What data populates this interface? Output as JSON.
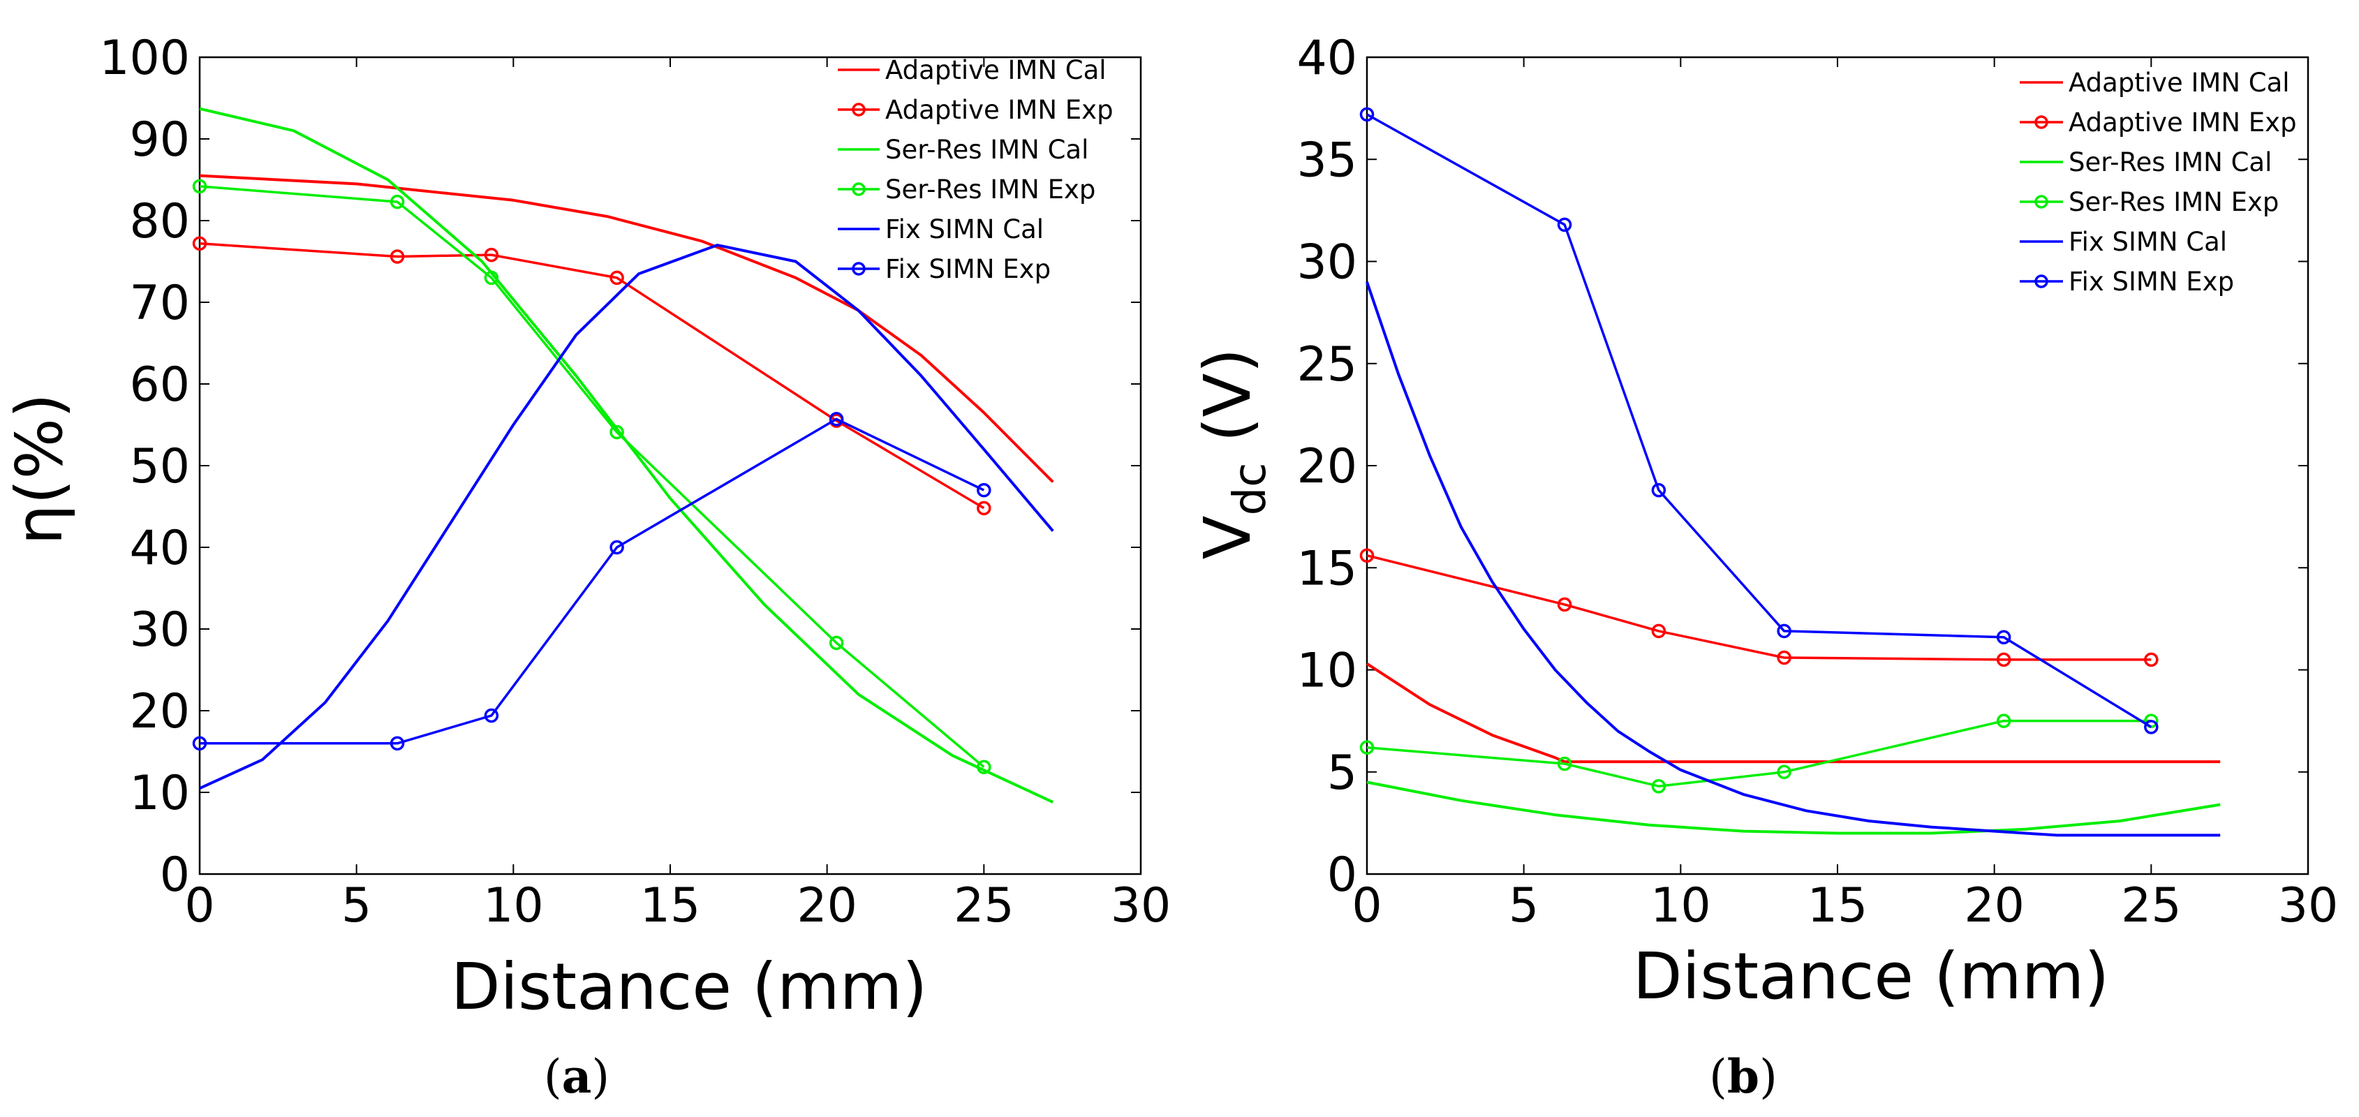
{
  "chart_data": [
    {
      "type": "line",
      "panel_label": {
        "open": "(",
        "letter": "a",
        "close": ")"
      },
      "xlabel": "Distance (mm)",
      "ylabel": "η(%)",
      "xlim": [
        0,
        30
      ],
      "ylim": [
        0,
        100
      ],
      "xticks": [
        "0",
        "5",
        "10",
        "15",
        "20",
        "25",
        "30"
      ],
      "yticks": [
        "0",
        "10",
        "20",
        "30",
        "40",
        "50",
        "60",
        "70",
        "80",
        "90",
        "100"
      ],
      "legend_position": "top-right",
      "series": [
        {
          "name": "Adaptive IMN Cal",
          "color": "#ff0000",
          "markers": false,
          "x": [
            0,
            5,
            10,
            13,
            16,
            19,
            21,
            23,
            25,
            27.2
          ],
          "y": [
            85.5,
            84.5,
            82.5,
            80.5,
            77.5,
            73,
            69,
            63.5,
            56.5,
            48
          ]
        },
        {
          "name": "Adaptive IMN Exp",
          "color": "#ff0000",
          "markers": true,
          "x": [
            0,
            6.3,
            9.3,
            13.3,
            20.3,
            25
          ],
          "y": [
            77.2,
            75.6,
            75.8,
            73,
            55.5,
            44.8
          ]
        },
        {
          "name": "Ser-Res IMN Cal",
          "color": "#00ee00",
          "markers": false,
          "x": [
            0,
            3,
            6,
            9,
            12,
            15,
            18,
            21,
            24,
            27.2
          ],
          "y": [
            93.7,
            91,
            85,
            75,
            61,
            46,
            33,
            22,
            14.5,
            8.8
          ]
        },
        {
          "name": "Ser-Res IMN Exp",
          "color": "#00ee00",
          "markers": true,
          "x": [
            0,
            6.3,
            9.3,
            13.3,
            20.3,
            25
          ],
          "y": [
            84.2,
            82.3,
            73,
            54.1,
            28.3,
            13.1
          ]
        },
        {
          "name": "Fix SIMN Cal",
          "color": "#0000ff",
          "markers": false,
          "x": [
            0,
            2,
            4,
            6,
            8,
            10,
            12,
            14,
            16.5,
            19,
            21,
            23,
            25,
            27.2
          ],
          "y": [
            10.5,
            14,
            21,
            31,
            43,
            55,
            66,
            73.5,
            77,
            75,
            69,
            61,
            52,
            42
          ]
        },
        {
          "name": "Fix SIMN Exp",
          "color": "#0000ff",
          "markers": true,
          "x": [
            0,
            6.3,
            9.3,
            13.3,
            20.3,
            25
          ],
          "y": [
            16,
            16,
            19.4,
            40,
            55.7,
            47
          ]
        }
      ]
    },
    {
      "type": "line",
      "panel_label": {
        "open": "(",
        "letter": "b",
        "close": ")"
      },
      "xlabel": "Distance (mm)",
      "ylabel_main": "V",
      "ylabel_sub": "dc",
      "ylabel_units": " (V)",
      "xlim": [
        0,
        30
      ],
      "ylim": [
        0,
        40
      ],
      "xticks": [
        "0",
        "5",
        "10",
        "15",
        "20",
        "25",
        "30"
      ],
      "yticks": [
        "0",
        "5",
        "10",
        "15",
        "20",
        "25",
        "30",
        "35",
        "40"
      ],
      "legend_position": "top-right",
      "series": [
        {
          "name": "Adaptive IMN Cal",
          "color": "#ff0000",
          "markers": false,
          "x": [
            0,
            2,
            4,
            6,
            6.3,
            10,
            15,
            20,
            25,
            27.2
          ],
          "y": [
            10.3,
            8.3,
            6.8,
            5.7,
            5.5,
            5.5,
            5.5,
            5.5,
            5.5,
            5.5
          ]
        },
        {
          "name": "Adaptive IMN Exp",
          "color": "#ff0000",
          "markers": true,
          "x": [
            0,
            6.3,
            9.3,
            13.3,
            20.3,
            25
          ],
          "y": [
            15.6,
            13.2,
            11.9,
            10.6,
            10.5,
            10.5
          ]
        },
        {
          "name": "Ser-Res IMN Cal",
          "color": "#00ee00",
          "markers": false,
          "x": [
            0,
            3,
            6,
            9,
            12,
            15,
            18,
            21,
            24,
            27.2
          ],
          "y": [
            4.5,
            3.6,
            2.9,
            2.4,
            2.1,
            2.0,
            2.0,
            2.2,
            2.6,
            3.4
          ]
        },
        {
          "name": "Ser-Res IMN Exp",
          "color": "#00ee00",
          "markers": true,
          "x": [
            0,
            6.3,
            9.3,
            13.3,
            20.3,
            25
          ],
          "y": [
            6.2,
            5.4,
            4.3,
            5.0,
            7.5,
            7.5
          ]
        },
        {
          "name": "Fix SIMN Cal",
          "color": "#0000ff",
          "markers": false,
          "x": [
            0,
            1,
            2,
            3,
            4,
            5,
            6,
            7,
            8,
            9,
            10,
            12,
            14,
            16,
            18,
            20,
            22,
            25,
            27.2
          ],
          "y": [
            29,
            24.5,
            20.5,
            17,
            14.3,
            12,
            10,
            8.4,
            7.0,
            6.0,
            5.1,
            3.9,
            3.1,
            2.6,
            2.3,
            2.1,
            1.9,
            1.9,
            1.9
          ]
        },
        {
          "name": "Fix SIMN Exp",
          "color": "#0000ff",
          "markers": true,
          "x": [
            0,
            6.3,
            9.3,
            13.3,
            20.3,
            25
          ],
          "y": [
            37.2,
            31.8,
            18.8,
            11.9,
            11.6,
            7.2
          ]
        }
      ]
    }
  ]
}
